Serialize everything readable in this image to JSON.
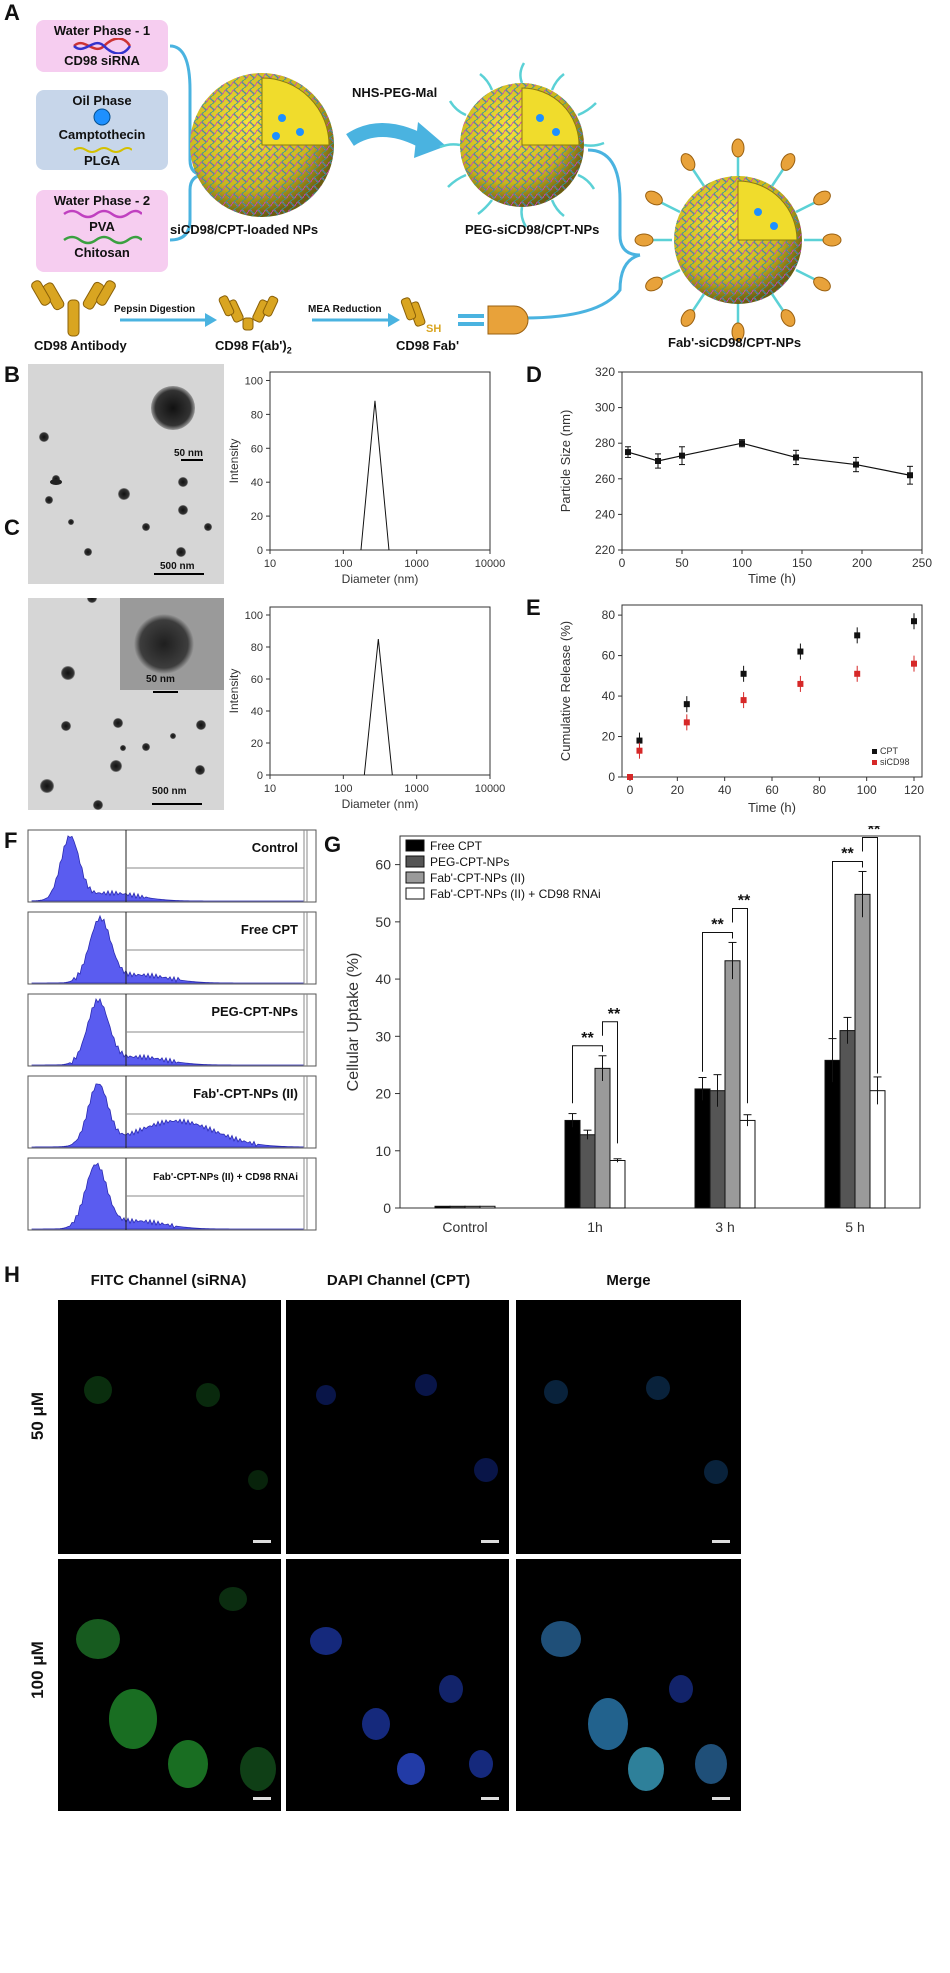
{
  "panels": {
    "A": "A",
    "B": "B",
    "C": "C",
    "D": "D",
    "E": "E",
    "F": "F",
    "G": "G",
    "H": "H"
  },
  "schematic": {
    "water1_title": "Water Phase - 1",
    "water1_item": "CD98 siRNA",
    "oil_title": "Oil Phase",
    "oil_item1": "Camptothecin",
    "oil_item2": "PLGA",
    "water2_title": "Water Phase - 2",
    "water2_item1": "PVA",
    "water2_item2": "Chitosan",
    "np1_label": "siCD98/CPT-loaded NPs",
    "reagent": "NHS-PEG-Mal",
    "np2_label": "PEG-siCD98/CPT-NPs",
    "np3_label": "Fab'-siCD98/CPT-NPs",
    "antibody": "CD98 Antibody",
    "step1": "Pepsin Digestion",
    "fab2": "CD98 F(ab')",
    "fab2_sub": "2",
    "step2": "MEA Reduction",
    "fab": "CD98 Fab'",
    "sh": "SH"
  },
  "tem": {
    "B_inset_scale": "50 nm",
    "B_main_scale": "500 nm",
    "C_inset_scale": "50 nm",
    "C_main_scale": "500 nm"
  },
  "dls_B": {
    "xlabel": "Diameter (nm)",
    "ylabel": "Intensity",
    "yticks": [
      "0",
      "20",
      "40",
      "60",
      "80",
      "100"
    ],
    "xticks": [
      "10",
      "100",
      "1000",
      "10000"
    ],
    "peak_nm": 270,
    "peak_value": 88
  },
  "dls_C": {
    "xlabel": "Diameter (nm)",
    "ylabel": "Intensity",
    "yticks": [
      "0",
      "20",
      "40",
      "60",
      "80",
      "100"
    ],
    "xticks": [
      "10",
      "100",
      "1000",
      "10000"
    ],
    "peak_nm": 300,
    "peak_value": 85
  },
  "chart_data": [
    {
      "type": "line",
      "title": "D",
      "xlabel": "Time (h)",
      "ylabel": "Particle Size (nm)",
      "xlim": [
        0,
        250
      ],
      "ylim": [
        220,
        320
      ],
      "xticks": [
        "0",
        "50",
        "100",
        "150",
        "200",
        "250"
      ],
      "yticks": [
        "220",
        "240",
        "260",
        "280",
        "300",
        "320"
      ],
      "x": [
        5,
        30,
        50,
        100,
        145,
        195,
        240
      ],
      "values": [
        275,
        270,
        273,
        280,
        272,
        268,
        262
      ],
      "errors": [
        3,
        4,
        5,
        2,
        4,
        4,
        5
      ]
    },
    {
      "type": "scatter",
      "title": "E",
      "xlabel": "Time (h)",
      "ylabel": "Cumulative Release (%)",
      "xlim": [
        0,
        120
      ],
      "ylim": [
        0,
        85
      ],
      "xticks": [
        "0",
        "20",
        "40",
        "60",
        "80",
        "100",
        "120"
      ],
      "yticks": [
        "0",
        "20",
        "40",
        "60",
        "80"
      ],
      "series": [
        {
          "name": "CPT",
          "color": "#111111",
          "x": [
            0,
            4,
            24,
            48,
            72,
            96,
            120
          ],
          "values": [
            0,
            18,
            36,
            51,
            62,
            70,
            77
          ]
        },
        {
          "name": "siCD98",
          "color": "#d62828",
          "x": [
            0,
            4,
            24,
            48,
            72,
            96,
            120
          ],
          "values": [
            0,
            13,
            27,
            38,
            46,
            51,
            56
          ]
        }
      ]
    },
    {
      "type": "bar",
      "title": "G",
      "ylabel": "Cellular Uptake (%)",
      "ylim": [
        0,
        65
      ],
      "yticks": [
        "0",
        "10",
        "20",
        "30",
        "40",
        "50",
        "60"
      ],
      "categories": [
        "Control",
        "1h",
        "3 h",
        "5 h"
      ],
      "series": [
        {
          "name": "Free CPT",
          "color": "#000000",
          "values": [
            0.3,
            15.3,
            20.8,
            25.8
          ]
        },
        {
          "name": "PEG-CPT-NPs",
          "color": "#555555",
          "values": [
            0.3,
            12.8,
            20.5,
            31.0
          ]
        },
        {
          "name": "Fab'-CPT-NPs (II)",
          "color": "#9a9a9a",
          "values": [
            0.3,
            24.4,
            43.2,
            54.8
          ]
        },
        {
          "name": "Fab'-CPT-NPs (II) + CD98 RNAi",
          "color": "#ffffff",
          "values": [
            0.3,
            8.3,
            15.3,
            20.5
          ]
        }
      ],
      "significance": "**"
    }
  ],
  "flow": [
    {
      "label": "Control"
    },
    {
      "label": "Free CPT"
    },
    {
      "label": "PEG-CPT-NPs"
    },
    {
      "label": "Fab'-CPT-NPs (II)"
    },
    {
      "label": "Fab'-CPT-NPs (II) + CD98 RNAi"
    }
  ],
  "micro": {
    "col1": "FITC Channel (siRNA)",
    "col2": "DAPI Channel (CPT)",
    "col3": "Merge",
    "row1": "50 μM",
    "row2": "100 μM"
  }
}
